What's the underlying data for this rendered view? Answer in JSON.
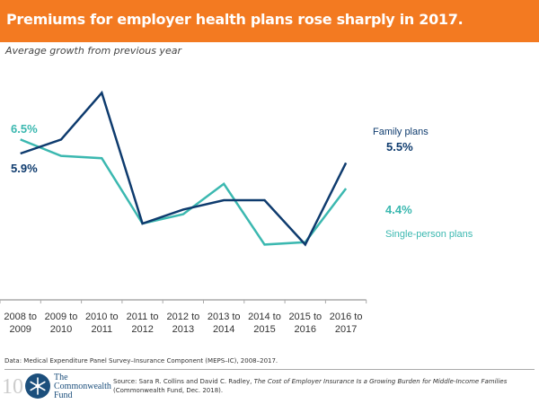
{
  "header": {
    "title": "Premiums for employer health plans rose sharply in 2017.",
    "color": "#f37a21"
  },
  "chart_data": {
    "type": "line",
    "title": "Premiums for employer health plans rose sharply in 2017.",
    "subtitle": "Average growth from previous year",
    "categories": [
      [
        "2008 to",
        "2009"
      ],
      [
        "2009 to",
        "2010"
      ],
      [
        "2010 to",
        "2011"
      ],
      [
        "2011 to",
        "2012"
      ],
      [
        "2012 to",
        "2013"
      ],
      [
        "2013 to",
        "2014"
      ],
      [
        "2014 to",
        "2015"
      ],
      [
        "2015 to",
        "2016"
      ],
      [
        "2016 to",
        "2017"
      ]
    ],
    "series": [
      {
        "name": "Family plans",
        "color": "#0e3b6e",
        "values": [
          5.9,
          6.5,
          8.5,
          2.9,
          3.5,
          3.9,
          3.9,
          2.0,
          5.5
        ],
        "start_label": "5.9%",
        "end_label": "5.5%"
      },
      {
        "name": "Single-person plans",
        "color": "#3bb8b0",
        "values": [
          6.5,
          5.8,
          5.7,
          2.9,
          3.3,
          4.6,
          2.0,
          2.1,
          4.4
        ],
        "start_label": "6.5%",
        "end_label": "4.4%"
      }
    ],
    "grid": false,
    "y_axis_visible": false
  },
  "footer": {
    "data_note": "Data: Medical Expenditure Panel Survey–Insurance Component (MEPS–IC), 2008–2017.",
    "source_prefix": "Source: Sara R. Collins and David C. Radley, ",
    "source_title": "The Cost of Employer Insurance Is a Growing Burden for Middle-Income Families",
    "source_suffix": "(Commonwealth Fund, Dec. 2018).",
    "logo": {
      "number": "10",
      "line1": "The",
      "line2": "Commonwealth",
      "line3": "Fund"
    }
  }
}
